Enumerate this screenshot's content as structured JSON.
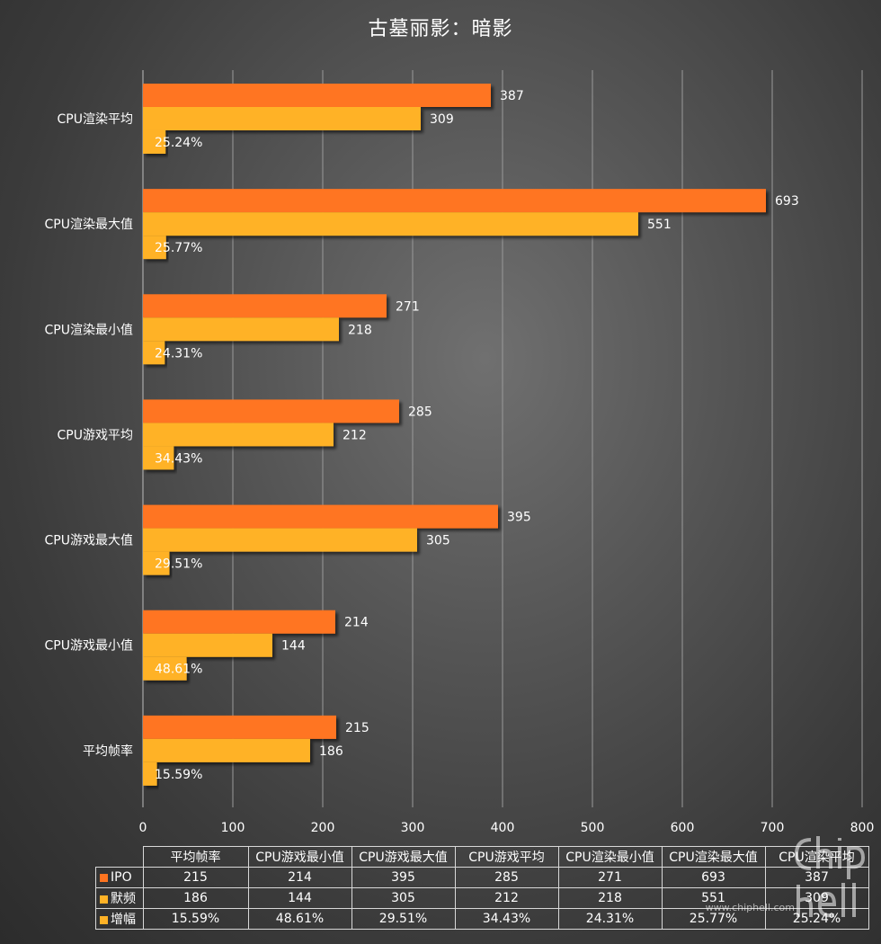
{
  "chart_data": {
    "type": "bar",
    "orientation": "horizontal",
    "title": "古墓丽影：暗影",
    "categories": [
      "平均帧率",
      "CPU游戏最小值",
      "CPU游戏最大值",
      "CPU游戏平均",
      "CPU渲染最小值",
      "CPU渲染最大值",
      "CPU渲染平均"
    ],
    "series": [
      {
        "name": "IPO",
        "color": "#ff7420",
        "values": [
          215,
          214,
          395,
          285,
          271,
          693,
          387
        ]
      },
      {
        "name": "默频",
        "color": "#ffb226",
        "values": [
          186,
          144,
          305,
          212,
          218,
          551,
          309
        ]
      },
      {
        "name": "增幅",
        "color": "#ffb226",
        "values": [
          "15.59%",
          "48.61%",
          "29.51%",
          "34.43%",
          "24.31%",
          "25.77%",
          "25.24%"
        ]
      }
    ],
    "xlim": [
      0,
      800
    ],
    "xticks": [
      0,
      100,
      200,
      300,
      400,
      500,
      600,
      700,
      800
    ],
    "grid": true,
    "legend": "data-table"
  },
  "watermark": {
    "url": "www.chiphell.com",
    "logo_text": "chiphell"
  }
}
